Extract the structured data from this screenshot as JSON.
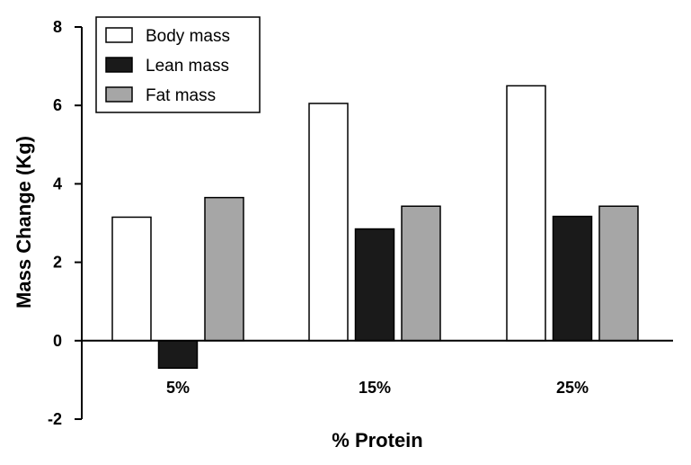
{
  "chart_data": {
    "type": "bar",
    "xlabel": "% Protein",
    "ylabel": "Mass Change (Kg)",
    "categories": [
      "5%",
      "15%",
      "25%"
    ],
    "series": [
      {
        "name": "Body mass",
        "values": [
          3.15,
          6.05,
          6.5
        ],
        "color": "#ffffff"
      },
      {
        "name": "Lean mass",
        "values": [
          -0.7,
          2.85,
          3.17
        ],
        "color": "#1a1a1a"
      },
      {
        "name": "Fat mass",
        "values": [
          3.65,
          3.43,
          3.43
        ],
        "color": "#a6a6a6"
      }
    ],
    "ylim": [
      -2,
      8
    ],
    "yticks": [
      -2,
      0,
      2,
      4,
      6,
      8
    ],
    "grid": false,
    "legend_position": "top-left"
  }
}
